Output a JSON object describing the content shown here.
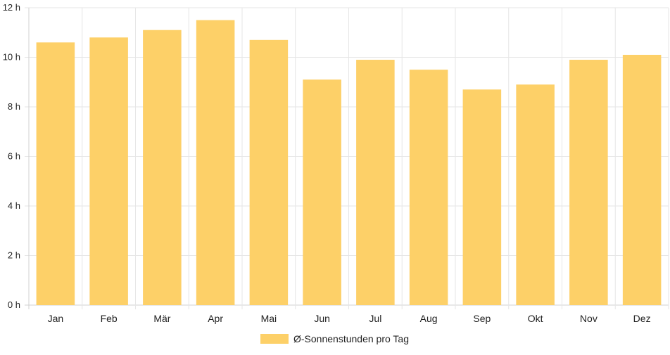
{
  "chart_data": {
    "type": "bar",
    "categories": [
      "Jan",
      "Feb",
      "Mär",
      "Apr",
      "Mai",
      "Jun",
      "Jul",
      "Aug",
      "Sep",
      "Okt",
      "Nov",
      "Dez"
    ],
    "series": [
      {
        "name": "Ø-Sonnenstunden pro Tag",
        "values": [
          10.6,
          10.8,
          11.1,
          11.5,
          10.7,
          9.1,
          9.9,
          9.5,
          8.7,
          8.9,
          9.9,
          10.1
        ],
        "color": "#fdd068"
      }
    ],
    "yticks": [
      "0 h",
      "2 h",
      "4 h",
      "6 h",
      "8 h",
      "10 h",
      "12 h"
    ],
    "ylim": [
      0,
      12
    ],
    "grid": true,
    "legend_position": "bottom"
  },
  "colors": {
    "grid": "#e6e6e6",
    "axis": "#d0d0d0",
    "text": "#222222"
  }
}
